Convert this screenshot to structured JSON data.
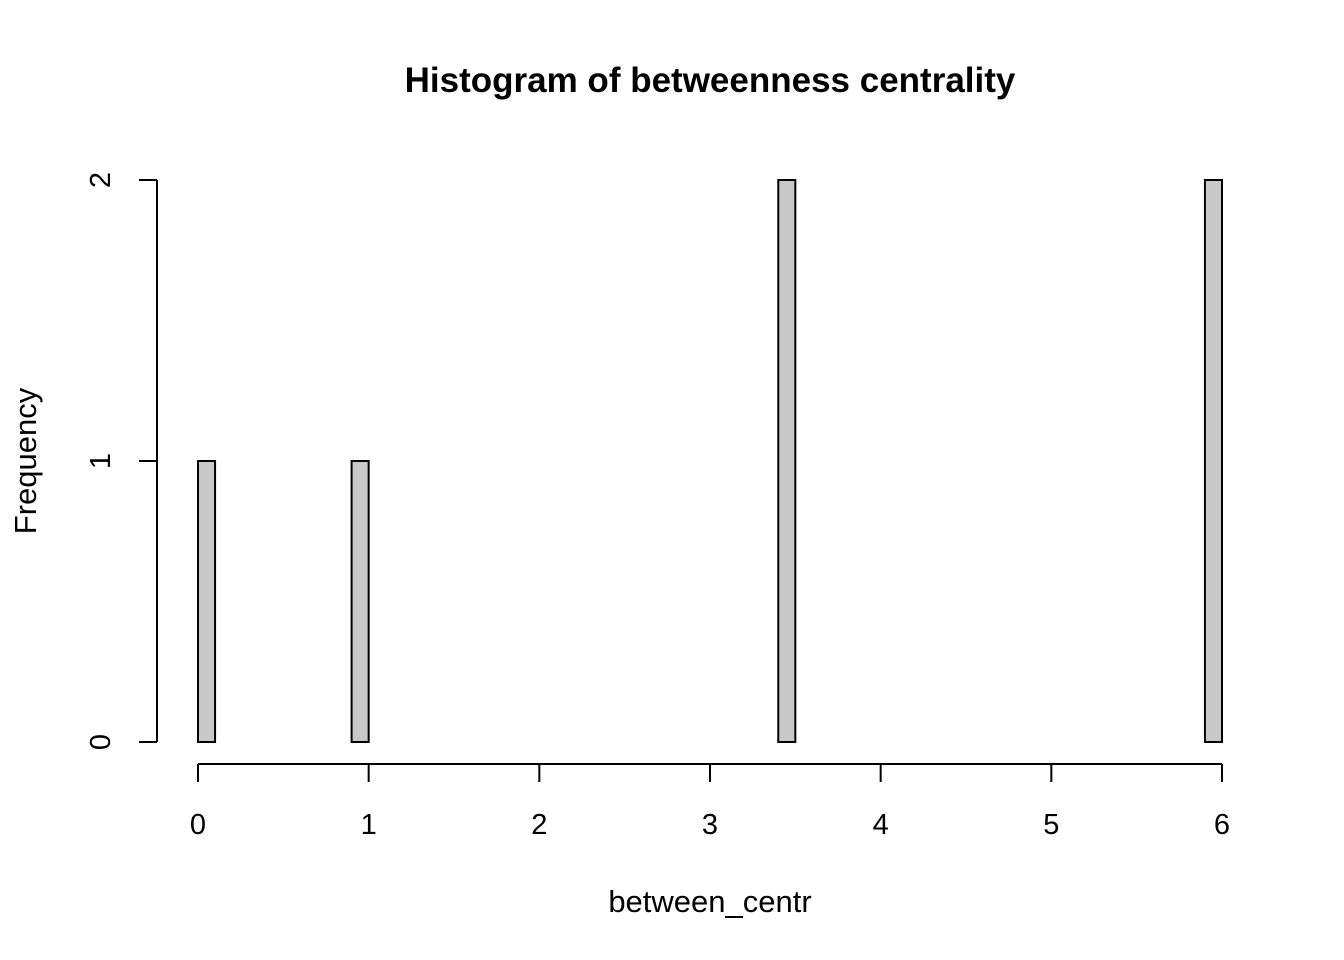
{
  "chart_data": {
    "type": "bar",
    "title": "Histogram of betweenness centrality",
    "xlabel": "between_centr",
    "ylabel": "Frequency",
    "xlim": [
      0,
      6
    ],
    "ylim": [
      0,
      2
    ],
    "bin_width": 0.1,
    "x_ticks": [
      0,
      1,
      2,
      3,
      4,
      5,
      6
    ],
    "y_ticks": [
      0,
      1,
      2
    ],
    "bins": [
      {
        "start": 0.0,
        "end": 0.1,
        "count": 1
      },
      {
        "start": 0.9,
        "end": 1.0,
        "count": 1
      },
      {
        "start": 3.4,
        "end": 3.5,
        "count": 2
      },
      {
        "start": 5.9,
        "end": 6.0,
        "count": 2
      }
    ],
    "bar_fill": "#c8c8c8",
    "bar_stroke": "#000000",
    "grid": false,
    "legend": "none"
  }
}
